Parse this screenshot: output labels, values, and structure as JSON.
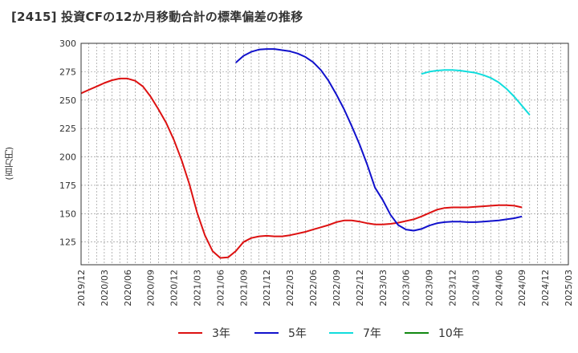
{
  "chart_data": {
    "type": "line",
    "title": "[2415]  投資CFの12か月移動合計の標準偏差の推移",
    "ylabel": "(百万円)",
    "xlabel": "",
    "ylim": [
      105,
      300
    ],
    "yticks": [
      125,
      150,
      175,
      200,
      225,
      250,
      275,
      300
    ],
    "grid": true,
    "legend_position": "bottom",
    "x_ticks": [
      "2019/12",
      "2020/03",
      "2020/06",
      "2020/09",
      "2020/12",
      "2021/03",
      "2021/06",
      "2021/09",
      "2021/12",
      "2022/03",
      "2022/06",
      "2022/09",
      "2022/12",
      "2023/03",
      "2023/06",
      "2023/09",
      "2023/12",
      "2024/03",
      "2024/06",
      "2024/09",
      "2024/12",
      "2025/03"
    ],
    "series": [
      {
        "name": "3年",
        "color": "#dd1111",
        "points": [
          [
            "2019/12",
            256
          ],
          [
            "2020/01",
            259
          ],
          [
            "2020/02",
            262
          ],
          [
            "2020/03",
            265
          ],
          [
            "2020/04",
            267.5
          ],
          [
            "2020/05",
            269
          ],
          [
            "2020/06",
            269
          ],
          [
            "2020/07",
            267
          ],
          [
            "2020/08",
            262
          ],
          [
            "2020/09",
            253
          ],
          [
            "2020/10",
            242
          ],
          [
            "2020/11",
            230
          ],
          [
            "2020/12",
            215
          ],
          [
            "2021/01",
            197
          ],
          [
            "2021/02",
            176
          ],
          [
            "2021/03",
            151
          ],
          [
            "2021/04",
            131
          ],
          [
            "2021/05",
            117
          ],
          [
            "2021/06",
            111
          ],
          [
            "2021/07",
            111.5
          ],
          [
            "2021/08",
            117
          ],
          [
            "2021/09",
            125
          ],
          [
            "2021/10",
            128.5
          ],
          [
            "2021/11",
            130
          ],
          [
            "2021/12",
            130.5
          ],
          [
            "2022/01",
            130
          ],
          [
            "2022/02",
            130
          ],
          [
            "2022/03",
            131
          ],
          [
            "2022/04",
            132.5
          ],
          [
            "2022/05",
            134
          ],
          [
            "2022/06",
            136
          ],
          [
            "2022/07",
            138
          ],
          [
            "2022/08",
            140
          ],
          [
            "2022/09",
            142.5
          ],
          [
            "2022/10",
            144
          ],
          [
            "2022/11",
            144
          ],
          [
            "2022/12",
            143
          ],
          [
            "2023/01",
            141.5
          ],
          [
            "2023/02",
            140.5
          ],
          [
            "2023/03",
            140.5
          ],
          [
            "2023/04",
            141
          ],
          [
            "2023/05",
            142
          ],
          [
            "2023/06",
            143.5
          ],
          [
            "2023/07",
            145
          ],
          [
            "2023/08",
            147.5
          ],
          [
            "2023/09",
            150.5
          ],
          [
            "2023/10",
            153.5
          ],
          [
            "2023/11",
            155
          ],
          [
            "2023/12",
            155.5
          ],
          [
            "2024/01",
            155.5
          ],
          [
            "2024/02",
            155.5
          ],
          [
            "2024/03",
            156
          ],
          [
            "2024/04",
            156.5
          ],
          [
            "2024/05",
            157
          ],
          [
            "2024/06",
            157.5
          ],
          [
            "2024/07",
            157.5
          ],
          [
            "2024/08",
            157
          ],
          [
            "2024/09",
            155.5
          ]
        ]
      },
      {
        "name": "5年",
        "color": "#1111cc",
        "points": [
          [
            "2021/08",
            283
          ],
          [
            "2021/09",
            289
          ],
          [
            "2021/10",
            292.5
          ],
          [
            "2021/11",
            294.5
          ],
          [
            "2021/12",
            295
          ],
          [
            "2022/01",
            295
          ],
          [
            "2022/02",
            294
          ],
          [
            "2022/03",
            293
          ],
          [
            "2022/04",
            291
          ],
          [
            "2022/05",
            288
          ],
          [
            "2022/06",
            283.5
          ],
          [
            "2022/07",
            276.5
          ],
          [
            "2022/08",
            267
          ],
          [
            "2022/09",
            255
          ],
          [
            "2022/10",
            242
          ],
          [
            "2022/11",
            227
          ],
          [
            "2022/12",
            211
          ],
          [
            "2023/01",
            193
          ],
          [
            "2023/02",
            173
          ],
          [
            "2023/03",
            162
          ],
          [
            "2023/04",
            149
          ],
          [
            "2023/05",
            140
          ],
          [
            "2023/06",
            136
          ],
          [
            "2023/07",
            135
          ],
          [
            "2023/08",
            136.5
          ],
          [
            "2023/09",
            139.5
          ],
          [
            "2023/10",
            141.5
          ],
          [
            "2023/11",
            142.5
          ],
          [
            "2023/12",
            143
          ],
          [
            "2024/01",
            143
          ],
          [
            "2024/02",
            142.5
          ],
          [
            "2024/03",
            142.5
          ],
          [
            "2024/04",
            143
          ],
          [
            "2024/05",
            143.5
          ],
          [
            "2024/06",
            144
          ],
          [
            "2024/07",
            145
          ],
          [
            "2024/08",
            146
          ],
          [
            "2024/09",
            147.5
          ]
        ]
      },
      {
        "name": "7年",
        "color": "#11dddd",
        "points": [
          [
            "2023/08",
            273
          ],
          [
            "2023/09",
            275
          ],
          [
            "2023/10",
            276
          ],
          [
            "2023/11",
            276.5
          ],
          [
            "2023/12",
            276.5
          ],
          [
            "2024/01",
            276
          ],
          [
            "2024/02",
            275
          ],
          [
            "2024/03",
            274
          ],
          [
            "2024/04",
            272
          ],
          [
            "2024/05",
            269.5
          ],
          [
            "2024/06",
            265.5
          ],
          [
            "2024/07",
            260
          ],
          [
            "2024/08",
            253
          ],
          [
            "2024/09",
            245
          ],
          [
            "2024/10",
            237
          ]
        ]
      },
      {
        "name": "10年",
        "color": "#118811",
        "points": []
      }
    ]
  }
}
